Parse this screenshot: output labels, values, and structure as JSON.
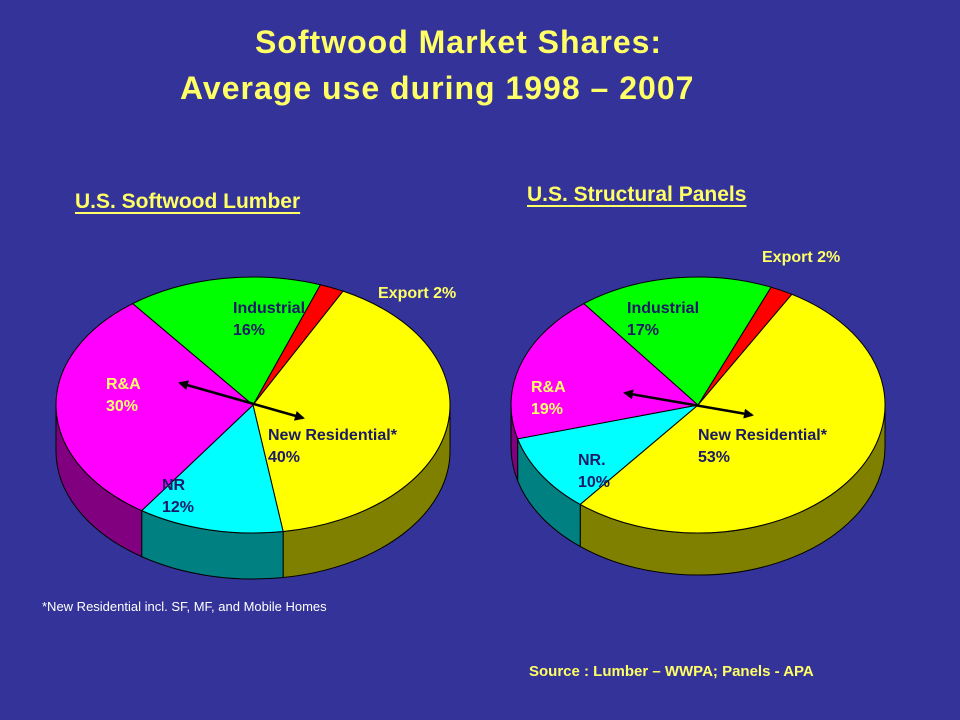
{
  "title_line1": "Softwood Market Shares:",
  "title_line2": "Average use during 1998 – 2007",
  "footnote": "*New Residential incl. SF, MF, and Mobile Homes",
  "source": "Source : Lumber – WWPA; Panels - APA",
  "chart_data": [
    {
      "type": "pie",
      "title": "U.S. Softwood Lumber",
      "slices": [
        {
          "label": "Export",
          "value": 2,
          "text": "Export 2%",
          "color": "#FF0000",
          "side_color": "#990000"
        },
        {
          "label": "New Residential*",
          "value": 40,
          "text": "New Residential*\n40%",
          "color": "#FFFF00",
          "side_color": "#808000"
        },
        {
          "label": "NR",
          "value": 12,
          "text": "NR\n12%",
          "color": "#00FFFF",
          "side_color": "#008080"
        },
        {
          "label": "R&A",
          "value": 30,
          "text": "R&A\n30%",
          "color": "#FF00FF",
          "side_color": "#800080"
        },
        {
          "label": "Industrial",
          "value": 16,
          "text": "Industrial\n16%",
          "color": "#00FF00",
          "side_color": "#008000"
        }
      ]
    },
    {
      "type": "pie",
      "title": "U.S. Structural Panels",
      "slices": [
        {
          "label": "Export",
          "value": 2,
          "text": "Export 2%",
          "color": "#FF0000",
          "side_color": "#990000"
        },
        {
          "label": "New Residential*",
          "value": 53,
          "text": "New Residential*\n53%",
          "color": "#FFFF00",
          "side_color": "#808000"
        },
        {
          "label": "NR.",
          "value": 10,
          "text": "NR.\n10%",
          "color": "#00FFFF",
          "side_color": "#008080"
        },
        {
          "label": "R&A",
          "value": 19,
          "text": "R&A\n19%",
          "color": "#FF00FF",
          "side_color": "#800080"
        },
        {
          "label": "Industrial",
          "value": 17,
          "text": "Industrial\n17%",
          "color": "#00FF00",
          "side_color": "#008000"
        }
      ]
    }
  ]
}
